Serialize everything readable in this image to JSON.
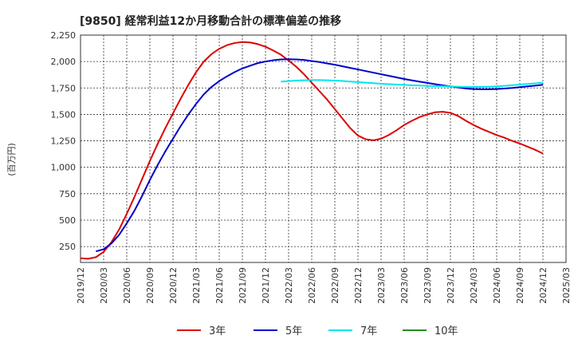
{
  "chart_data": {
    "type": "line",
    "title": "[9850]  経常利益12か月移動合計の標準偏差の推移",
    "ylabel": "(百万円)",
    "xlabel": "",
    "ylim": [
      100,
      2250
    ],
    "y_ticks": [
      250,
      500,
      750,
      1000,
      1250,
      1500,
      1750,
      2000,
      2250
    ],
    "y_tick_labels": [
      "250",
      "500",
      "750",
      "1,000",
      "1,250",
      "1,500",
      "1,750",
      "2,000",
      "2,250"
    ],
    "x_ticks": [
      "2019/12",
      "2020/03",
      "2020/06",
      "2020/09",
      "2020/12",
      "2021/03",
      "2021/06",
      "2021/09",
      "2021/12",
      "2022/03",
      "2022/06",
      "2022/09",
      "2022/12",
      "2023/03",
      "2023/06",
      "2023/09",
      "2023/12",
      "2024/03",
      "2024/06",
      "2024/09",
      "2024/12",
      "2025/03"
    ],
    "grid": true,
    "legend_position": "bottom",
    "series": [
      {
        "name": "3年",
        "color": "#dd0000",
        "points": [
          [
            "2019/12",
            140
          ],
          [
            "2020/01",
            135
          ],
          [
            "2020/02",
            150
          ],
          [
            "2020/03",
            200
          ],
          [
            "2020/04",
            290
          ],
          [
            "2020/05",
            410
          ],
          [
            "2020/06",
            560
          ],
          [
            "2020/07",
            720
          ],
          [
            "2020/08",
            890
          ],
          [
            "2020/09",
            1060
          ],
          [
            "2020/10",
            1220
          ],
          [
            "2020/11",
            1370
          ],
          [
            "2020/12",
            1510
          ],
          [
            "2021/01",
            1650
          ],
          [
            "2021/02",
            1780
          ],
          [
            "2021/03",
            1900
          ],
          [
            "2021/04",
            2000
          ],
          [
            "2021/05",
            2070
          ],
          [
            "2021/06",
            2120
          ],
          [
            "2021/07",
            2155
          ],
          [
            "2021/08",
            2175
          ],
          [
            "2021/09",
            2185
          ],
          [
            "2021/10",
            2180
          ],
          [
            "2021/11",
            2165
          ],
          [
            "2021/12",
            2140
          ],
          [
            "2022/01",
            2105
          ],
          [
            "2022/02",
            2065
          ],
          [
            "2022/03",
            2010
          ],
          [
            "2022/04",
            1950
          ],
          [
            "2022/05",
            1880
          ],
          [
            "2022/06",
            1800
          ],
          [
            "2022/07",
            1720
          ],
          [
            "2022/08",
            1640
          ],
          [
            "2022/09",
            1550
          ],
          [
            "2022/10",
            1460
          ],
          [
            "2022/11",
            1370
          ],
          [
            "2022/12",
            1300
          ],
          [
            "2023/01",
            1265
          ],
          [
            "2023/02",
            1255
          ],
          [
            "2023/03",
            1270
          ],
          [
            "2023/04",
            1305
          ],
          [
            "2023/05",
            1350
          ],
          [
            "2023/06",
            1400
          ],
          [
            "2023/07",
            1440
          ],
          [
            "2023/08",
            1475
          ],
          [
            "2023/09",
            1500
          ],
          [
            "2023/10",
            1520
          ],
          [
            "2023/11",
            1525
          ],
          [
            "2023/12",
            1515
          ],
          [
            "2024/01",
            1485
          ],
          [
            "2024/02",
            1440
          ],
          [
            "2024/03",
            1400
          ],
          [
            "2024/04",
            1365
          ],
          [
            "2024/05",
            1335
          ],
          [
            "2024/06",
            1305
          ],
          [
            "2024/07",
            1280
          ],
          [
            "2024/08",
            1250
          ],
          [
            "2024/09",
            1225
          ],
          [
            "2024/10",
            1195
          ],
          [
            "2024/11",
            1165
          ],
          [
            "2024/12",
            1130
          ]
        ]
      },
      {
        "name": "5年",
        "color": "#0000cc",
        "points": [
          [
            "2020/02",
            205
          ],
          [
            "2020/03",
            225
          ],
          [
            "2020/04",
            280
          ],
          [
            "2020/05",
            360
          ],
          [
            "2020/06",
            470
          ],
          [
            "2020/07",
            590
          ],
          [
            "2020/08",
            730
          ],
          [
            "2020/09",
            880
          ],
          [
            "2020/10",
            1020
          ],
          [
            "2020/11",
            1150
          ],
          [
            "2020/12",
            1270
          ],
          [
            "2021/01",
            1390
          ],
          [
            "2021/02",
            1500
          ],
          [
            "2021/03",
            1600
          ],
          [
            "2021/04",
            1690
          ],
          [
            "2021/05",
            1760
          ],
          [
            "2021/06",
            1815
          ],
          [
            "2021/07",
            1860
          ],
          [
            "2021/08",
            1900
          ],
          [
            "2021/09",
            1935
          ],
          [
            "2021/10",
            1960
          ],
          [
            "2021/11",
            1985
          ],
          [
            "2021/12",
            2000
          ],
          [
            "2022/01",
            2012
          ],
          [
            "2022/02",
            2020
          ],
          [
            "2022/03",
            2022
          ],
          [
            "2022/04",
            2020
          ],
          [
            "2022/05",
            2015
          ],
          [
            "2022/06",
            2005
          ],
          [
            "2022/07",
            1995
          ],
          [
            "2022/08",
            1982
          ],
          [
            "2022/09",
            1970
          ],
          [
            "2022/10",
            1955
          ],
          [
            "2022/11",
            1940
          ],
          [
            "2022/12",
            1925
          ],
          [
            "2023/01",
            1910
          ],
          [
            "2023/02",
            1895
          ],
          [
            "2023/03",
            1880
          ],
          [
            "2023/04",
            1865
          ],
          [
            "2023/05",
            1850
          ],
          [
            "2023/06",
            1835
          ],
          [
            "2023/07",
            1822
          ],
          [
            "2023/08",
            1810
          ],
          [
            "2023/09",
            1798
          ],
          [
            "2023/10",
            1786
          ],
          [
            "2023/11",
            1775
          ],
          [
            "2023/12",
            1765
          ],
          [
            "2024/01",
            1755
          ],
          [
            "2024/02",
            1745
          ],
          [
            "2024/03",
            1740
          ],
          [
            "2024/04",
            1738
          ],
          [
            "2024/05",
            1738
          ],
          [
            "2024/06",
            1740
          ],
          [
            "2024/07",
            1745
          ],
          [
            "2024/08",
            1750
          ],
          [
            "2024/09",
            1758
          ],
          [
            "2024/10",
            1765
          ],
          [
            "2024/11",
            1772
          ],
          [
            "2024/12",
            1780
          ]
        ]
      },
      {
        "name": "7年",
        "color": "#00e5ee",
        "points": [
          [
            "2022/02",
            1810
          ],
          [
            "2022/03",
            1815
          ],
          [
            "2022/04",
            1820
          ],
          [
            "2022/05",
            1823
          ],
          [
            "2022/06",
            1825
          ],
          [
            "2022/07",
            1825
          ],
          [
            "2022/08",
            1823
          ],
          [
            "2022/09",
            1820
          ],
          [
            "2022/10",
            1816
          ],
          [
            "2022/11",
            1811
          ],
          [
            "2022/12",
            1806
          ],
          [
            "2023/01",
            1800
          ],
          [
            "2023/02",
            1795
          ],
          [
            "2023/03",
            1790
          ],
          [
            "2023/04",
            1786
          ],
          [
            "2023/05",
            1782
          ],
          [
            "2023/06",
            1779
          ],
          [
            "2023/07",
            1776
          ],
          [
            "2023/08",
            1773
          ],
          [
            "2023/09",
            1770
          ],
          [
            "2023/10",
            1768
          ],
          [
            "2023/11",
            1766
          ],
          [
            "2023/12",
            1764
          ],
          [
            "2024/01",
            1762
          ],
          [
            "2024/02",
            1760
          ],
          [
            "2024/03",
            1760
          ],
          [
            "2024/04",
            1760
          ],
          [
            "2024/05",
            1762
          ],
          [
            "2024/06",
            1765
          ],
          [
            "2024/07",
            1770
          ],
          [
            "2024/08",
            1776
          ],
          [
            "2024/09",
            1782
          ],
          [
            "2024/10",
            1788
          ],
          [
            "2024/11",
            1794
          ],
          [
            "2024/12",
            1800
          ]
        ]
      },
      {
        "name": "10年",
        "color": "#228b22",
        "points": []
      }
    ]
  }
}
